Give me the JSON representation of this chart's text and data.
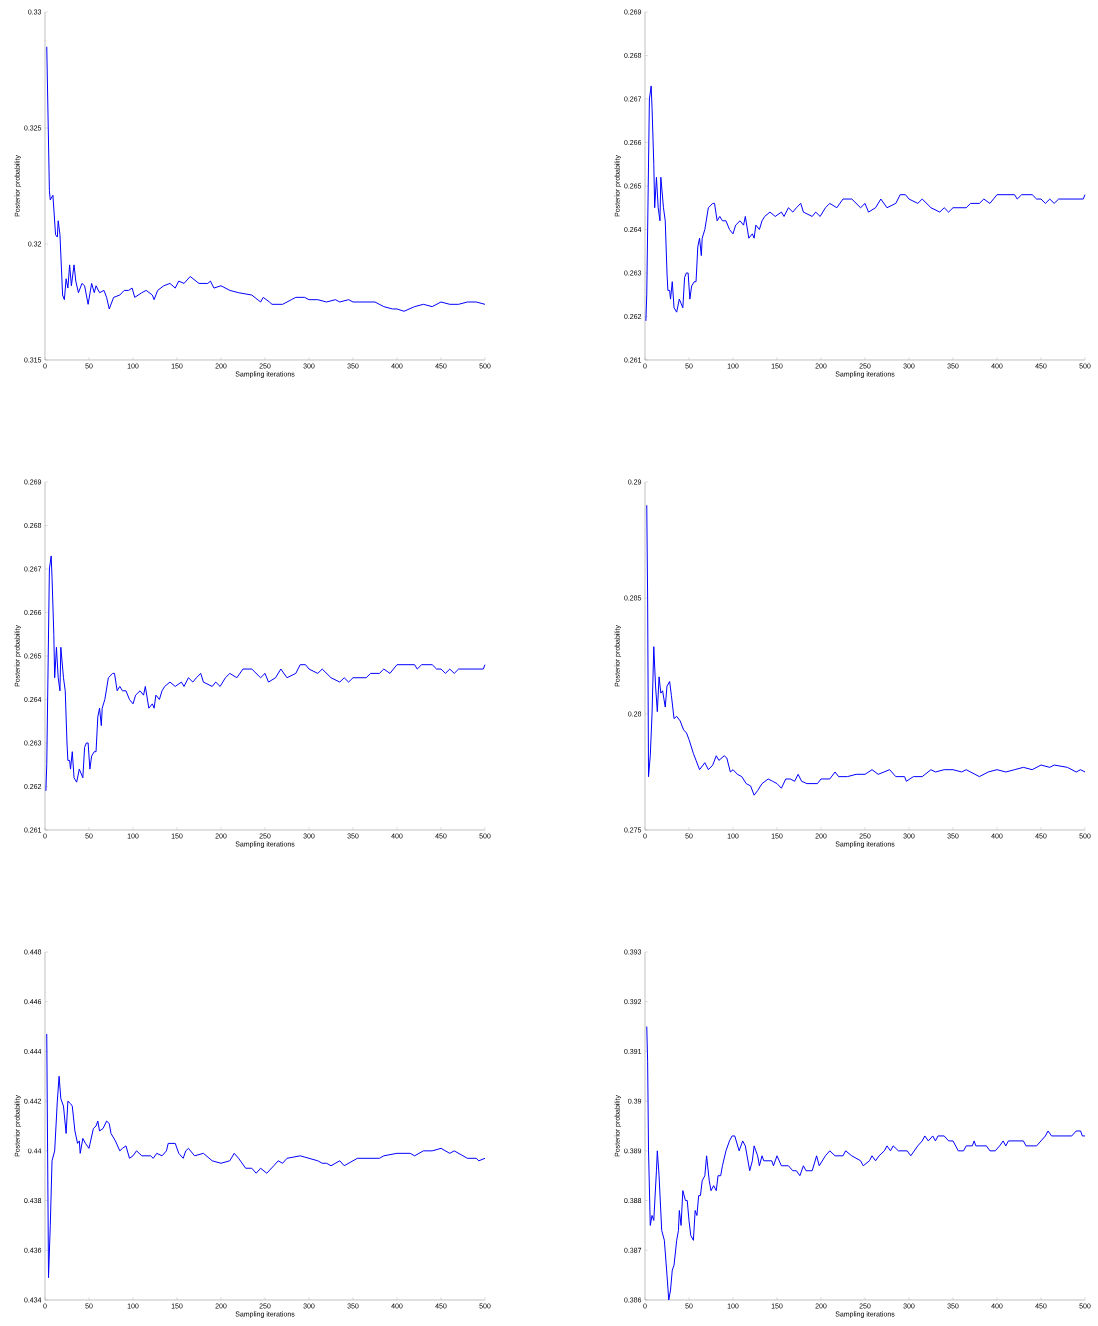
{
  "chart_data": [
    {
      "type": "line",
      "xlabel": "Sampling iterations",
      "ylabel": "Posterior probability",
      "color": "#0000ff",
      "xlim": [
        0,
        500
      ],
      "ylim": [
        0.315,
        0.33
      ],
      "xticks": [
        0,
        50,
        100,
        150,
        200,
        250,
        300,
        350,
        400,
        450,
        500
      ],
      "yticks": [
        0.315,
        0.32,
        0.325,
        0.33
      ],
      "x": [
        2,
        5,
        6,
        9,
        12,
        14,
        15,
        17,
        20,
        22,
        24,
        26,
        28,
        30,
        33,
        35,
        38,
        42,
        45,
        49,
        53,
        56,
        58,
        62,
        67,
        70,
        73,
        78,
        85,
        90,
        95,
        99,
        102,
        110,
        115,
        122,
        124,
        128,
        135,
        142,
        148,
        152,
        158,
        165,
        175,
        185,
        188,
        192,
        200,
        210,
        220,
        235,
        245,
        248,
        255,
        258,
        270,
        280,
        285,
        295,
        300,
        310,
        320,
        330,
        335,
        345,
        350,
        375,
        385,
        395,
        400,
        408,
        420,
        430,
        440,
        450,
        460,
        470,
        480,
        490,
        500
      ],
      "values": [
        0.3285,
        0.3223,
        0.3219,
        0.3221,
        0.3204,
        0.3203,
        0.321,
        0.3204,
        0.3178,
        0.3176,
        0.3185,
        0.3181,
        0.3191,
        0.3182,
        0.3191,
        0.3184,
        0.3179,
        0.3183,
        0.3182,
        0.3174,
        0.3183,
        0.3179,
        0.3182,
        0.3179,
        0.318,
        0.3177,
        0.3172,
        0.3177,
        0.3178,
        0.318,
        0.318,
        0.3181,
        0.3177,
        0.3179,
        0.318,
        0.3178,
        0.3176,
        0.318,
        0.3182,
        0.3183,
        0.3181,
        0.3184,
        0.3183,
        0.3186,
        0.3183,
        0.3183,
        0.3184,
        0.3181,
        0.3182,
        0.318,
        0.3179,
        0.3178,
        0.3175,
        0.3177,
        0.3175,
        0.3174,
        0.3174,
        0.3176,
        0.3177,
        0.3177,
        0.3176,
        0.3176,
        0.3175,
        0.3176,
        0.3175,
        0.3176,
        0.3175,
        0.3175,
        0.3173,
        0.3172,
        0.3172,
        0.3171,
        0.3173,
        0.3174,
        0.3173,
        0.3175,
        0.3174,
        0.3174,
        0.3175,
        0.3175,
        0.3174
      ]
    },
    {
      "type": "line",
      "xlabel": "Sampling iterations",
      "ylabel": "Posterior probability",
      "color": "#0000ff",
      "xlim": [
        0,
        500
      ],
      "ylim": [
        0.261,
        0.269
      ],
      "xticks": [
        0,
        50,
        100,
        150,
        200,
        250,
        300,
        350,
        400,
        450,
        500
      ],
      "yticks": [
        0.261,
        0.262,
        0.263,
        0.264,
        0.265,
        0.266,
        0.267,
        0.268,
        0.269
      ],
      "x": [
        1,
        2,
        5,
        7,
        8,
        10,
        11,
        13,
        15,
        17,
        18,
        21,
        23,
        25,
        26,
        28,
        29,
        31,
        33,
        36,
        39,
        41,
        43,
        45,
        47,
        49,
        51,
        53,
        56,
        58,
        60,
        62,
        64,
        65,
        68,
        72,
        77,
        79,
        82,
        85,
        88,
        92,
        96,
        100,
        103,
        108,
        112,
        114,
        118,
        122,
        124,
        126,
        130,
        133,
        136,
        142,
        148,
        155,
        158,
        163,
        168,
        172,
        177,
        180,
        190,
        194,
        199,
        205,
        210,
        218,
        225,
        235,
        245,
        250,
        254,
        262,
        268,
        275,
        285,
        290,
        296,
        300,
        310,
        315,
        325,
        335,
        340,
        345,
        350,
        365,
        370,
        380,
        385,
        392,
        400,
        420,
        423,
        428,
        440,
        445,
        450,
        455,
        460,
        465,
        470,
        498,
        500
      ],
      "values": [
        0.2619,
        0.2625,
        0.267,
        0.2673,
        0.2668,
        0.2655,
        0.2645,
        0.2652,
        0.2645,
        0.2642,
        0.2652,
        0.2645,
        0.2642,
        0.263,
        0.2626,
        0.2626,
        0.2624,
        0.2628,
        0.2622,
        0.2621,
        0.2624,
        0.2623,
        0.2622,
        0.2629,
        0.263,
        0.263,
        0.2624,
        0.2627,
        0.2628,
        0.2628,
        0.2636,
        0.2638,
        0.2634,
        0.2638,
        0.264,
        0.2645,
        0.2646,
        0.2646,
        0.2642,
        0.2643,
        0.2642,
        0.2642,
        0.264,
        0.2639,
        0.2641,
        0.2642,
        0.2641,
        0.2643,
        0.2638,
        0.2639,
        0.2638,
        0.2641,
        0.264,
        0.2642,
        0.2643,
        0.2644,
        0.2643,
        0.2644,
        0.2643,
        0.2645,
        0.2644,
        0.2645,
        0.2646,
        0.2644,
        0.2643,
        0.2644,
        0.2643,
        0.2645,
        0.2646,
        0.2645,
        0.2647,
        0.2647,
        0.2645,
        0.2646,
        0.2644,
        0.2645,
        0.2647,
        0.2645,
        0.2646,
        0.2648,
        0.2648,
        0.2647,
        0.2646,
        0.2647,
        0.2645,
        0.2644,
        0.2645,
        0.2644,
        0.2645,
        0.2645,
        0.2646,
        0.2646,
        0.2647,
        0.2646,
        0.2648,
        0.2648,
        0.2647,
        0.2648,
        0.2648,
        0.2647,
        0.2647,
        0.2646,
        0.2647,
        0.2646,
        0.2647,
        0.2647,
        0.2648
      ]
    },
    {
      "type": "line",
      "xlabel": "Sampling iterations",
      "ylabel": "Posterior probability",
      "color": "#0000ff",
      "xlim": [
        0,
        500
      ],
      "ylim": [
        0.261,
        0.269
      ],
      "xticks": [
        0,
        50,
        100,
        150,
        200,
        250,
        300,
        350,
        400,
        450,
        500
      ],
      "yticks": [
        0.261,
        0.262,
        0.263,
        0.264,
        0.265,
        0.266,
        0.267,
        0.268,
        0.269
      ],
      "x": [
        1,
        2,
        5,
        7,
        8,
        10,
        11,
        13,
        15,
        17,
        18,
        21,
        23,
        25,
        26,
        28,
        29,
        31,
        33,
        36,
        39,
        41,
        43,
        45,
        47,
        49,
        51,
        53,
        56,
        58,
        60,
        62,
        64,
        65,
        68,
        72,
        77,
        79,
        82,
        85,
        88,
        92,
        96,
        100,
        103,
        108,
        112,
        114,
        118,
        122,
        124,
        126,
        130,
        133,
        136,
        142,
        148,
        155,
        158,
        163,
        168,
        172,
        177,
        180,
        190,
        194,
        199,
        205,
        210,
        218,
        225,
        235,
        245,
        250,
        254,
        262,
        268,
        275,
        285,
        290,
        296,
        300,
        310,
        315,
        325,
        335,
        340,
        345,
        350,
        365,
        370,
        380,
        385,
        392,
        400,
        420,
        423,
        428,
        440,
        445,
        450,
        455,
        460,
        465,
        470,
        498,
        500
      ],
      "values": [
        0.2619,
        0.2625,
        0.267,
        0.2673,
        0.2668,
        0.2655,
        0.2645,
        0.2652,
        0.2645,
        0.2642,
        0.2652,
        0.2645,
        0.2642,
        0.263,
        0.2626,
        0.2626,
        0.2624,
        0.2628,
        0.2622,
        0.2621,
        0.2624,
        0.2623,
        0.2622,
        0.2629,
        0.263,
        0.263,
        0.2624,
        0.2627,
        0.2628,
        0.2628,
        0.2636,
        0.2638,
        0.2634,
        0.2638,
        0.264,
        0.2645,
        0.2646,
        0.2646,
        0.2642,
        0.2643,
        0.2642,
        0.2642,
        0.264,
        0.2639,
        0.2641,
        0.2642,
        0.2641,
        0.2643,
        0.2638,
        0.2639,
        0.2638,
        0.2641,
        0.264,
        0.2642,
        0.2643,
        0.2644,
        0.2643,
        0.2644,
        0.2643,
        0.2645,
        0.2644,
        0.2645,
        0.2646,
        0.2644,
        0.2643,
        0.2644,
        0.2643,
        0.2645,
        0.2646,
        0.2645,
        0.2647,
        0.2647,
        0.2645,
        0.2646,
        0.2644,
        0.2645,
        0.2647,
        0.2645,
        0.2646,
        0.2648,
        0.2648,
        0.2647,
        0.2646,
        0.2647,
        0.2645,
        0.2644,
        0.2645,
        0.2644,
        0.2645,
        0.2645,
        0.2646,
        0.2646,
        0.2647,
        0.2646,
        0.2648,
        0.2648,
        0.2647,
        0.2648,
        0.2648,
        0.2647,
        0.2647,
        0.2646,
        0.2647,
        0.2646,
        0.2647,
        0.2647,
        0.2648
      ]
    },
    {
      "type": "line",
      "xlabel": "Sampling iterations",
      "ylabel": "Posterior probability",
      "color": "#0000ff",
      "xlim": [
        0,
        500
      ],
      "ylim": [
        0.275,
        0.29
      ],
      "xticks": [
        0,
        50,
        100,
        150,
        200,
        250,
        300,
        350,
        400,
        450,
        500
      ],
      "yticks": [
        0.275,
        0.28,
        0.285,
        0.29
      ],
      "x": [
        2,
        3,
        4,
        6,
        8,
        10,
        12,
        14,
        16,
        18,
        20,
        23,
        25,
        28,
        30,
        33,
        36,
        40,
        44,
        47,
        50,
        55,
        58,
        62,
        66,
        68,
        72,
        77,
        81,
        84,
        90,
        93,
        97,
        100,
        105,
        110,
        115,
        120,
        124,
        128,
        133,
        140,
        145,
        150,
        155,
        160,
        165,
        170,
        174,
        178,
        184,
        190,
        196,
        200,
        210,
        216,
        220,
        230,
        240,
        250,
        258,
        265,
        278,
        285,
        295,
        297,
        305,
        315,
        325,
        330,
        340,
        350,
        360,
        365,
        375,
        380,
        390,
        400,
        410,
        420,
        430,
        440,
        450,
        460,
        465,
        480,
        490,
        495,
        500
      ],
      "values": [
        0.289,
        0.285,
        0.2773,
        0.2782,
        0.28,
        0.2829,
        0.2812,
        0.2801,
        0.2816,
        0.2809,
        0.281,
        0.2803,
        0.2812,
        0.2814,
        0.2808,
        0.2798,
        0.2799,
        0.2797,
        0.2793,
        0.2792,
        0.2789,
        0.2783,
        0.278,
        0.2776,
        0.2778,
        0.2779,
        0.2776,
        0.2778,
        0.2782,
        0.278,
        0.2782,
        0.2781,
        0.2775,
        0.2776,
        0.2774,
        0.2773,
        0.277,
        0.2769,
        0.2765,
        0.2767,
        0.277,
        0.2772,
        0.2771,
        0.277,
        0.2768,
        0.2772,
        0.2772,
        0.2771,
        0.2774,
        0.2771,
        0.277,
        0.277,
        0.277,
        0.2772,
        0.2772,
        0.2775,
        0.2773,
        0.2773,
        0.2774,
        0.2774,
        0.2776,
        0.2774,
        0.2776,
        0.2773,
        0.2773,
        0.2771,
        0.2773,
        0.2773,
        0.2776,
        0.2775,
        0.2776,
        0.2776,
        0.2775,
        0.2776,
        0.2774,
        0.2773,
        0.2775,
        0.2776,
        0.2775,
        0.2776,
        0.2777,
        0.2776,
        0.2778,
        0.2777,
        0.2778,
        0.2777,
        0.2775,
        0.2776,
        0.2775
      ]
    },
    {
      "type": "line",
      "xlabel": "Sampling iterations",
      "ylabel": "Posterior probability",
      "color": "#0000ff",
      "xlim": [
        0,
        500
      ],
      "ylim": [
        0.434,
        0.448
      ],
      "xticks": [
        0,
        50,
        100,
        150,
        200,
        250,
        300,
        350,
        400,
        450,
        500
      ],
      "yticks": [
        0.434,
        0.436,
        0.438,
        0.44,
        0.442,
        0.444,
        0.446,
        0.448
      ],
      "x": [
        2,
        4,
        6,
        8,
        11,
        14,
        16,
        18,
        21,
        24,
        26,
        29,
        31,
        34,
        37,
        39,
        40,
        43,
        46,
        50,
        55,
        58,
        60,
        62,
        66,
        70,
        73,
        75,
        80,
        85,
        88,
        92,
        96,
        100,
        104,
        110,
        120,
        123,
        127,
        133,
        138,
        140,
        148,
        152,
        157,
        160,
        163,
        170,
        180,
        190,
        200,
        210,
        215,
        220,
        228,
        235,
        240,
        245,
        252,
        260,
        265,
        270,
        275,
        290,
        300,
        310,
        315,
        320,
        325,
        335,
        340,
        350,
        355,
        370,
        380,
        385,
        400,
        415,
        420,
        430,
        440,
        450,
        460,
        465,
        475,
        480,
        490,
        493,
        500
      ],
      "values": [
        0.4447,
        0.4349,
        0.437,
        0.4396,
        0.44,
        0.442,
        0.443,
        0.4421,
        0.4418,
        0.4407,
        0.442,
        0.4419,
        0.4418,
        0.4408,
        0.4403,
        0.4404,
        0.4399,
        0.4405,
        0.4403,
        0.4401,
        0.4409,
        0.441,
        0.4412,
        0.4408,
        0.4409,
        0.4412,
        0.4411,
        0.4407,
        0.4404,
        0.44,
        0.4401,
        0.4402,
        0.4397,
        0.4398,
        0.44,
        0.4398,
        0.4398,
        0.4397,
        0.4399,
        0.4398,
        0.44,
        0.4403,
        0.4403,
        0.4399,
        0.4397,
        0.44,
        0.4401,
        0.4398,
        0.4399,
        0.4396,
        0.4395,
        0.4396,
        0.4399,
        0.4397,
        0.4393,
        0.4393,
        0.4391,
        0.4393,
        0.4391,
        0.4394,
        0.4396,
        0.4395,
        0.4397,
        0.4398,
        0.4397,
        0.4396,
        0.4395,
        0.4395,
        0.4394,
        0.4396,
        0.4394,
        0.4396,
        0.4397,
        0.4397,
        0.4397,
        0.4398,
        0.4399,
        0.4399,
        0.4398,
        0.44,
        0.44,
        0.4401,
        0.4399,
        0.44,
        0.4398,
        0.4397,
        0.4397,
        0.4396,
        0.4397
      ]
    },
    {
      "type": "line",
      "xlabel": "Sampling iterations",
      "ylabel": "Posterior probability",
      "color": "#0000ff",
      "xlim": [
        0,
        500
      ],
      "ylim": [
        0.386,
        0.393
      ],
      "xticks": [
        0,
        50,
        100,
        150,
        200,
        250,
        300,
        350,
        400,
        450,
        500
      ],
      "yticks": [
        0.386,
        0.387,
        0.388,
        0.389,
        0.39,
        0.391,
        0.392,
        0.393
      ],
      "x": [
        2,
        3,
        4,
        6,
        8,
        10,
        13,
        14,
        16,
        19,
        22,
        25,
        27,
        29,
        31,
        33,
        36,
        38,
        39,
        41,
        43,
        46,
        48,
        50,
        52,
        55,
        57,
        59,
        61,
        63,
        65,
        68,
        70,
        73,
        75,
        78,
        81,
        83,
        86,
        88,
        92,
        96,
        99,
        102,
        107,
        111,
        114,
        119,
        122,
        124,
        128,
        130,
        133,
        135,
        144,
        146,
        150,
        155,
        163,
        168,
        172,
        176,
        180,
        183,
        190,
        195,
        198,
        205,
        210,
        216,
        225,
        228,
        235,
        245,
        248,
        255,
        258,
        262,
        266,
        272,
        275,
        279,
        282,
        288,
        298,
        302,
        310,
        315,
        318,
        322,
        327,
        330,
        333,
        340,
        345,
        350,
        356,
        362,
        365,
        372,
        374,
        376,
        388,
        392,
        398,
        403,
        407,
        410,
        413,
        430,
        433,
        445,
        450,
        455,
        458,
        462,
        485,
        490,
        495,
        497,
        500
      ],
      "values": [
        0.3915,
        0.3908,
        0.389,
        0.3875,
        0.3877,
        0.3876,
        0.3886,
        0.389,
        0.3885,
        0.3874,
        0.3872,
        0.3865,
        0.386,
        0.3862,
        0.3866,
        0.3867,
        0.3872,
        0.3874,
        0.3878,
        0.3875,
        0.3882,
        0.388,
        0.388,
        0.3876,
        0.3873,
        0.3872,
        0.3878,
        0.3877,
        0.3881,
        0.3881,
        0.3884,
        0.3885,
        0.3889,
        0.3884,
        0.3882,
        0.3883,
        0.3882,
        0.3885,
        0.3885,
        0.3887,
        0.389,
        0.3892,
        0.3893,
        0.3893,
        0.389,
        0.3892,
        0.3891,
        0.3886,
        0.3888,
        0.3891,
        0.3889,
        0.3887,
        0.3889,
        0.3888,
        0.3888,
        0.3887,
        0.3889,
        0.3887,
        0.3887,
        0.3886,
        0.3886,
        0.3885,
        0.3887,
        0.3886,
        0.3886,
        0.3889,
        0.3887,
        0.3889,
        0.389,
        0.3889,
        0.3889,
        0.389,
        0.3889,
        0.3888,
        0.3887,
        0.3888,
        0.3889,
        0.3888,
        0.3889,
        0.389,
        0.3891,
        0.389,
        0.3891,
        0.389,
        0.389,
        0.3889,
        0.3891,
        0.3892,
        0.3893,
        0.3892,
        0.3893,
        0.3892,
        0.3893,
        0.3893,
        0.3892,
        0.3892,
        0.389,
        0.389,
        0.3891,
        0.3891,
        0.3892,
        0.3891,
        0.3891,
        0.389,
        0.389,
        0.3891,
        0.3892,
        0.3891,
        0.3892,
        0.3892,
        0.3891,
        0.3891,
        0.3892,
        0.3893,
        0.3894,
        0.3893,
        0.3893,
        0.3894,
        0.3894,
        0.3893,
        0.3893
      ]
    }
  ]
}
